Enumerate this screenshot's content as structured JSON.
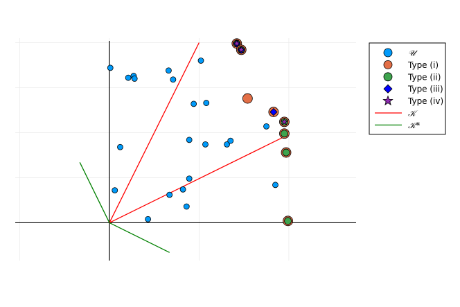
{
  "chart_data": {
    "type": "scatter",
    "title": "",
    "xlabel": "",
    "ylabel": "",
    "xlim": [
      -1.05,
      2.75
    ],
    "ylim": [
      -0.42,
      2.05
    ],
    "grid": true,
    "grid_x": [
      -1,
      0,
      1,
      2
    ],
    "grid_y": [
      0,
      0.5,
      1,
      1.5,
      2
    ],
    "show_ticks": false,
    "legend_position": "top-right",
    "colors": {
      "U": "#009AFA",
      "type_i": "#E36F47",
      "type_ii": "#3EA44E",
      "type_iii": "#0000FF",
      "type_iv": "#8E2BB2",
      "K": "#FF0000",
      "K_star": "#008000",
      "axis": "#000000",
      "grid": "#EBEBEB"
    },
    "legend": [
      {
        "key": "U",
        "label": "𝒰",
        "marker": "circle"
      },
      {
        "key": "type_i",
        "label": "Type (i)",
        "marker": "circle"
      },
      {
        "key": "type_ii",
        "label": "Type (ii)",
        "marker": "circle"
      },
      {
        "key": "type_iii",
        "label": "Type (iii)",
        "marker": "diamond"
      },
      {
        "key": "type_iv",
        "label": "Type (iv)",
        "marker": "star"
      },
      {
        "key": "K",
        "label": "𝒦",
        "marker": "line"
      },
      {
        "key": "K_star",
        "label": "𝒦*",
        "marker": "line"
      }
    ],
    "series": {
      "U": [
        [
          0.01,
          1.72
        ],
        [
          0.21,
          1.61
        ],
        [
          0.27,
          1.63
        ],
        [
          0.28,
          1.6
        ],
        [
          0.66,
          1.69
        ],
        [
          0.71,
          1.59
        ],
        [
          1.02,
          1.8
        ],
        [
          0.94,
          1.32
        ],
        [
          1.08,
          1.33
        ],
        [
          0.12,
          0.84
        ],
        [
          0.89,
          0.92
        ],
        [
          1.07,
          0.87
        ],
        [
          1.31,
          0.87
        ],
        [
          1.35,
          0.91
        ],
        [
          1.75,
          1.07
        ],
        [
          0.06,
          0.36
        ],
        [
          0.67,
          0.31
        ],
        [
          0.82,
          0.37
        ],
        [
          0.89,
          0.49
        ],
        [
          0.86,
          0.18
        ],
        [
          0.43,
          0.04
        ],
        [
          1.85,
          0.42
        ]
      ],
      "type_i": [
        [
          1.54,
          1.38
        ]
      ],
      "type_ii": [
        [
          1.95,
          0.99
        ],
        [
          1.97,
          0.78
        ],
        [
          1.99,
          0.02
        ]
      ],
      "type_iii_with_i": [
        [
          1.83,
          1.23
        ]
      ],
      "type_iv_with_i_ii": [
        [
          1.95,
          1.12
        ]
      ],
      "type_iv_with_iii": [
        [
          1.42,
          1.99
        ],
        [
          1.47,
          1.92
        ]
      ],
      "K": [
        [
          [
            0,
            0
          ],
          [
            1.0,
            2.0
          ]
        ],
        [
          [
            0,
            0
          ],
          [
            2.0,
            0.98
          ]
        ]
      ],
      "K_star": [
        [
          [
            0,
            0
          ],
          [
            -0.33,
            0.67
          ]
        ],
        [
          [
            0,
            0
          ],
          [
            0.67,
            -0.33
          ]
        ]
      ]
    }
  }
}
